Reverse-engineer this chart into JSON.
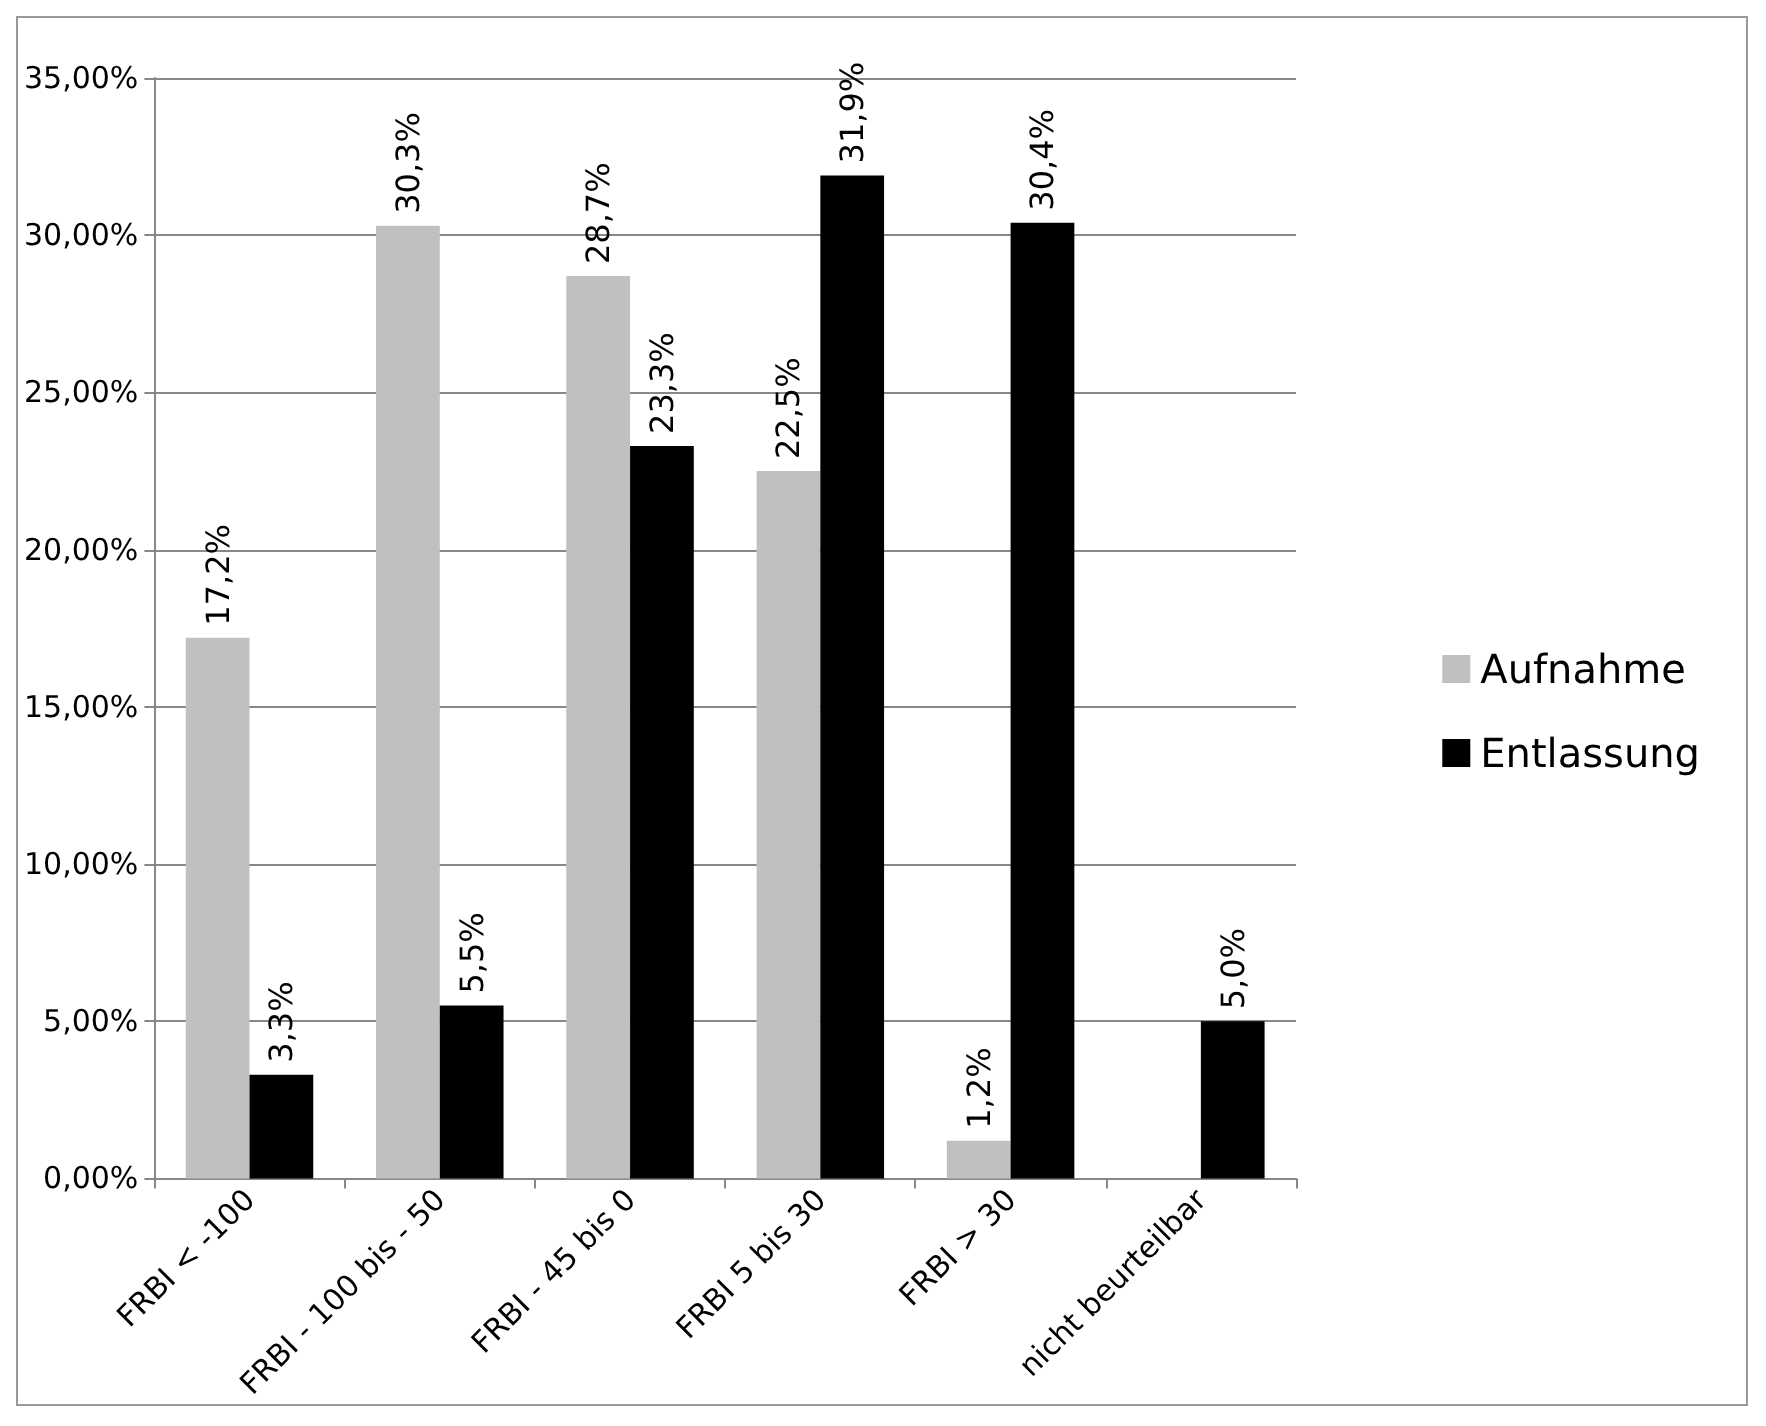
{
  "chart_data": {
    "type": "bar",
    "categories": [
      "FRBI < -100",
      "FRBI - 100 bis - 50",
      "FRBI - 45 bis 0",
      "FRBI 5 bis 30",
      "FRBI > 30",
      "nicht beurteilbar"
    ],
    "series": [
      {
        "name": "Aufnahme",
        "color": "#c0c0c0",
        "values": [
          17.2,
          30.3,
          28.7,
          22.5,
          1.2,
          null
        ],
        "value_labels": [
          "17,2%",
          "30,3%",
          "28,7%",
          "22,5%",
          "1,2%",
          null
        ]
      },
      {
        "name": "Entlassung",
        "color": "#000000",
        "values": [
          3.3,
          5.5,
          23.3,
          31.9,
          30.4,
          5.0
        ],
        "value_labels": [
          "3,3%",
          "5,5%",
          "23,3%",
          "31,9%",
          "30,4%",
          "5,0%"
        ]
      }
    ],
    "ylim": [
      0,
      35
    ],
    "yticks": [
      {
        "value": 0,
        "label": "0,00%"
      },
      {
        "value": 5,
        "label": "5,00%"
      },
      {
        "value": 10,
        "label": "10,00%"
      },
      {
        "value": 15,
        "label": "15,00%"
      },
      {
        "value": 20,
        "label": "20,00%"
      },
      {
        "value": 25,
        "label": "25,00%"
      },
      {
        "value": 30,
        "label": "30,00%"
      },
      {
        "value": 35,
        "label": "35,00%"
      }
    ],
    "grid": "y",
    "legend": "right"
  }
}
